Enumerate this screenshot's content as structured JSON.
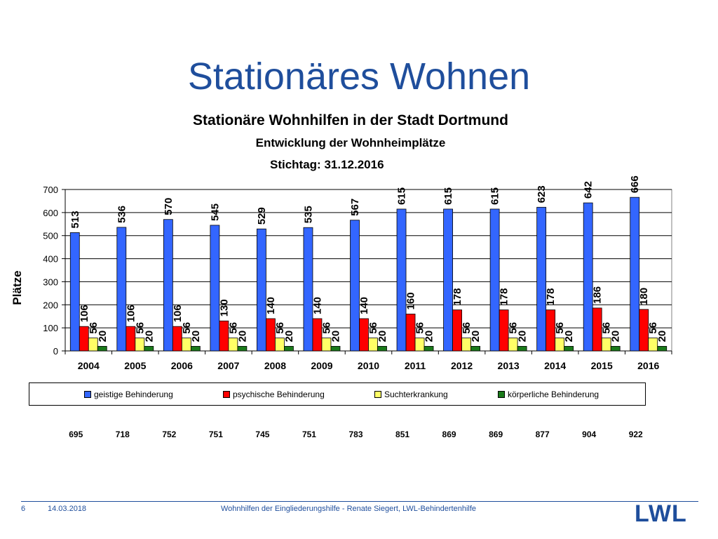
{
  "slide": {
    "title": "Stationäres Wohnen"
  },
  "chart_data": {
    "type": "bar",
    "title": "Stationäre Wohnhilfen in der Stadt Dortmund",
    "subtitle": "Entwicklung der Wohnheimplätze",
    "date_label": "Stichtag: 31.12.2016",
    "ylabel": "Plätze",
    "xlabel": "",
    "ylim": [
      0,
      700
    ],
    "yticks": [
      0,
      100,
      200,
      300,
      400,
      500,
      600,
      700
    ],
    "grid": true,
    "legend_position": "bottom",
    "categories": [
      "2004",
      "2005",
      "2006",
      "2007",
      "2008",
      "2009",
      "2010",
      "2011",
      "2012",
      "2013",
      "2014",
      "2015",
      "2016"
    ],
    "series": [
      {
        "name": "geistige Behinderung",
        "color": "#3366ff",
        "values": [
          513,
          536,
          570,
          545,
          529,
          535,
          567,
          615,
          615,
          615,
          623,
          642,
          666
        ]
      },
      {
        "name": "psychische Behinderung",
        "color": "#ff0000",
        "values": [
          106,
          106,
          106,
          130,
          140,
          140,
          140,
          160,
          178,
          178,
          178,
          186,
          180
        ]
      },
      {
        "name": "Suchterkrankung",
        "color": "#ffff66",
        "values": [
          56,
          56,
          56,
          56,
          56,
          56,
          56,
          56,
          56,
          56,
          56,
          56,
          56
        ]
      },
      {
        "name": "körperliche Behinderung",
        "color": "#1a7a1a",
        "values": [
          20,
          20,
          20,
          20,
          20,
          20,
          20,
          20,
          20,
          20,
          20,
          20,
          20
        ]
      }
    ],
    "totals": [
      695,
      718,
      752,
      751,
      745,
      751,
      783,
      851,
      869,
      869,
      877,
      904,
      922
    ]
  },
  "footer": {
    "page": "6",
    "date": "14.03.2018",
    "text": "Wohnhilfen der Eingliederungshilfe - Renate Siegert, LWL-Behindertenhilfe",
    "logo": "LWL"
  },
  "colors": {
    "accent": "#1f4e9c"
  }
}
